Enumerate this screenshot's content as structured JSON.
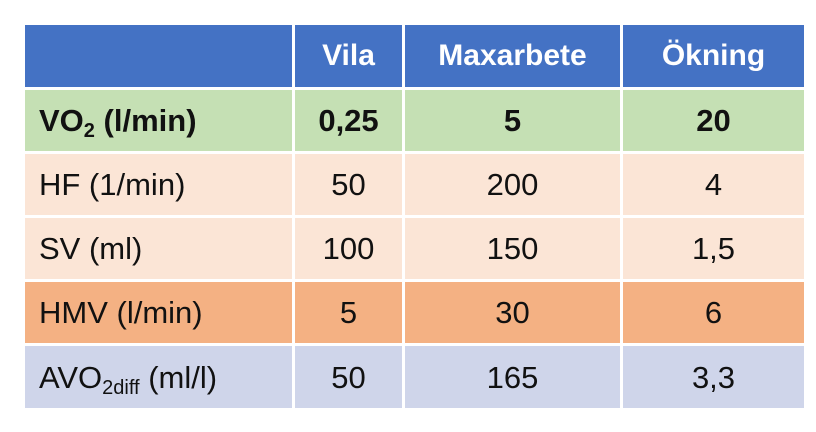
{
  "header": {
    "col0": "",
    "col1": "Vila",
    "col2": "Maxarbete",
    "col3": "Ökning"
  },
  "rows": [
    {
      "label_main": "VO",
      "label_sub": "2",
      "label_rest": " (l/min)",
      "vila": "0,25",
      "max": "5",
      "okning": "20"
    },
    {
      "label": "HF (1/min)",
      "vila": "50",
      "max": "200",
      "okning": "4"
    },
    {
      "label": "SV (ml)",
      "vila": "100",
      "max": "150",
      "okning": "1,5"
    },
    {
      "label": "HMV (l/min)",
      "vila": "5",
      "max": "30",
      "okning": "6"
    },
    {
      "label_main": "AVO",
      "label_sub": "2diff",
      "label_rest": " (ml/l)",
      "vila": "50",
      "max": "165",
      "okning": "3,3"
    }
  ],
  "colors": {
    "header": "#4472c4",
    "vo2_row": "#c5e0b4",
    "light_rows": "#fbe5d6",
    "hmv_row": "#f4b183",
    "avo_row": "#cfd5ea"
  }
}
